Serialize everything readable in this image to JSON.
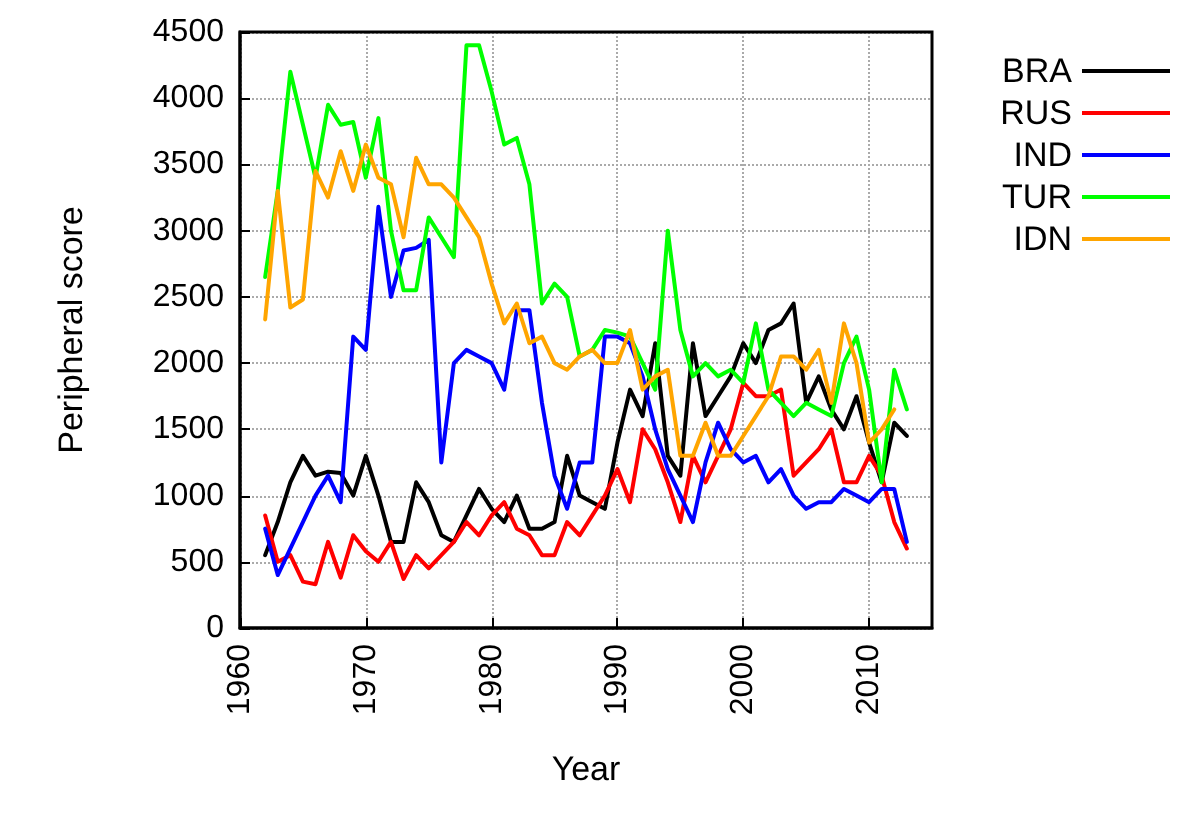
{
  "chart_data": {
    "type": "line",
    "xlabel": "Year",
    "ylabel": "Peripheral score",
    "x": [
      1962,
      1963,
      1964,
      1965,
      1966,
      1967,
      1968,
      1969,
      1970,
      1971,
      1972,
      1973,
      1974,
      1975,
      1976,
      1977,
      1978,
      1979,
      1980,
      1981,
      1982,
      1983,
      1984,
      1985,
      1986,
      1987,
      1988,
      1989,
      1990,
      1991,
      1992,
      1993,
      1994,
      1995,
      1996,
      1997,
      1998,
      1999,
      2000,
      2001,
      2002,
      2003,
      2004,
      2005,
      2006,
      2007,
      2008,
      2009,
      2010,
      2011,
      2012,
      2013
    ],
    "series": [
      {
        "name": "BRA",
        "color": "#000000",
        "values": [
          550,
          800,
          1100,
          1300,
          1150,
          1180,
          1170,
          1000,
          1300,
          1000,
          650,
          650,
          1100,
          950,
          700,
          650,
          850,
          1050,
          900,
          800,
          1000,
          750,
          750,
          800,
          1300,
          1000,
          950,
          900,
          1400,
          1800,
          1600,
          2150,
          1300,
          1150,
          2150,
          1600,
          1750,
          1900,
          2150,
          2000,
          2250,
          2300,
          2450,
          1700,
          1900,
          1650,
          1500,
          1750,
          1400,
          1100,
          1550,
          1450
        ]
      },
      {
        "name": "RUS",
        "color": "#ff0000",
        "values": [
          850,
          500,
          550,
          350,
          330,
          650,
          380,
          700,
          580,
          500,
          650,
          370,
          550,
          450,
          550,
          650,
          800,
          700,
          850,
          950,
          750,
          700,
          550,
          550,
          800,
          700,
          850,
          1000,
          1200,
          950,
          1500,
          1350,
          1100,
          800,
          1300,
          1100,
          1300,
          1500,
          1850,
          1750,
          1750,
          1800,
          1150,
          1250,
          1350,
          1500,
          1100,
          1100,
          1300,
          1150,
          800,
          600
        ]
      },
      {
        "name": "IND",
        "color": "#0000ff",
        "values": [
          750,
          400,
          600,
          800,
          1000,
          1150,
          950,
          2200,
          2100,
          3180,
          2500,
          2850,
          2870,
          2930,
          1250,
          2000,
          2100,
          2050,
          2000,
          1800,
          2400,
          2400,
          1700,
          1150,
          900,
          1250,
          1250,
          2200,
          2200,
          2150,
          1900,
          1500,
          1200,
          1000,
          800,
          1250,
          1550,
          1350,
          1250,
          1300,
          1100,
          1200,
          1000,
          900,
          950,
          950,
          1050,
          1000,
          950,
          1050,
          1050,
          650
        ]
      },
      {
        "name": "TUR",
        "color": "#00ff00",
        "values": [
          2650,
          3300,
          4200,
          3800,
          3400,
          3950,
          3800,
          3820,
          3400,
          3850,
          3000,
          2550,
          2550,
          3100,
          2950,
          2800,
          4400,
          4400,
          4050,
          3650,
          3700,
          3350,
          2450,
          2600,
          2500,
          2050,
          2100,
          2250,
          2230,
          2200,
          2000,
          1800,
          3000,
          2250,
          1900,
          2000,
          1900,
          1950,
          1850,
          2300,
          1800,
          1700,
          1600,
          1700,
          1650,
          1600,
          2000,
          2200,
          1800,
          1100,
          1950,
          1650
        ]
      },
      {
        "name": "IDN",
        "color": "#ffa500",
        "values": [
          2330,
          3300,
          2420,
          2480,
          3450,
          3250,
          3600,
          3300,
          3650,
          3400,
          3350,
          2950,
          3550,
          3350,
          3350,
          3250,
          3100,
          2950,
          2600,
          2300,
          2450,
          2150,
          2200,
          2000,
          1950,
          2050,
          2100,
          2000,
          2000,
          2250,
          1800,
          1900,
          1950,
          1300,
          1300,
          1550,
          1300,
          1300,
          1450,
          1600,
          1750,
          2050,
          2050,
          1950,
          2100,
          1700,
          2300,
          2000,
          1400,
          1500,
          1650,
          null
        ]
      }
    ],
    "xlim": [
      1960,
      2015
    ],
    "xticks": [
      1960,
      1970,
      1980,
      1990,
      2000,
      2010
    ],
    "ylim": [
      0,
      4500
    ],
    "yticks": [
      0,
      500,
      1000,
      1500,
      2000,
      2500,
      3000,
      3500,
      4000,
      4500
    ],
    "grid": true,
    "legend": "right",
    "marker": "none",
    "line_style": "solid"
  }
}
